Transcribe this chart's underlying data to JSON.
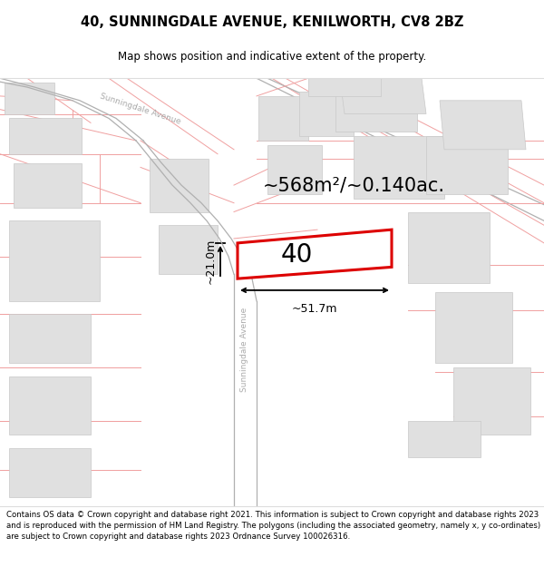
{
  "title": "40, SUNNINGDALE AVENUE, KENILWORTH, CV8 2BZ",
  "subtitle": "Map shows position and indicative extent of the property.",
  "area_text": "~568m²/~0.140ac.",
  "width_label": "~51.7m",
  "height_label": "~21.0m",
  "street_label": "Sunningdale Avenue",
  "number_label": "40",
  "footer_text": "Contains OS data © Crown copyright and database right 2021. This information is subject to Crown copyright and database rights 2023 and is reproduced with the permission of HM Land Registry. The polygons (including the associated geometry, namely x, y co-ordinates) are subject to Crown copyright and database rights 2023 Ordnance Survey 100026316.",
  "bg_color": "#ffffff",
  "map_bg": "#ffffff",
  "road_line": "#f0a0a0",
  "road_fill": "#eeeeee",
  "plot_outline": "#dd0000",
  "building_fill": "#e0e0e0",
  "building_edge": "#c8c8c8",
  "dark_road_line": "#b0b0b0",
  "title_bg": "#ffffff",
  "footer_bg": "#ffffff"
}
